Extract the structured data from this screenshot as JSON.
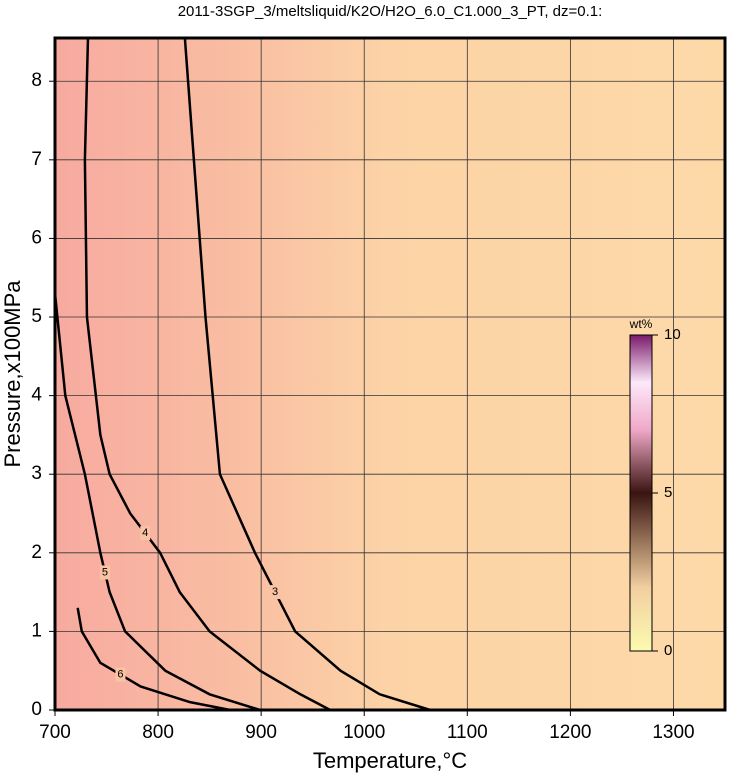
{
  "chart_data": {
    "type": "contour",
    "title": "2011-3SGP_3/meltsliquid/K2O/H2O_6.0_C1.000_3_PT, dz=0.1:",
    "x_label": "Temperature,°C",
    "y_label": "Pressure,x100MPa",
    "xlim": [
      700,
      1350
    ],
    "ylim": [
      0,
      8.55
    ],
    "xticks": [
      700,
      800,
      900,
      1000,
      1100,
      1200,
      1300
    ],
    "yticks": [
      0,
      1,
      2,
      3,
      4,
      5,
      6,
      7,
      8
    ],
    "grid": true,
    "line_color": "#000000",
    "contours": [
      {
        "level": 3,
        "x": [
          826,
          846,
          860,
          894,
          933,
          977,
          1015,
          1064
        ],
        "y": [
          8.55,
          5,
          3,
          2,
          1,
          0.5,
          0.2,
          0
        ]
      },
      {
        "level": 4,
        "x": [
          732,
          729,
          731,
          744,
          753,
          773,
          802,
          821,
          850,
          899,
          938,
          967
        ],
        "y": [
          8.55,
          7,
          5,
          3.5,
          3,
          2.5,
          2,
          1.5,
          1,
          0.5,
          0.2,
          0
        ]
      },
      {
        "level": 5,
        "x": [
          700,
          710,
          729,
          744,
          753,
          768,
          807,
          850,
          899
        ],
        "y": [
          5.3,
          4,
          3,
          2,
          1.5,
          1,
          0.5,
          0.2,
          0
        ]
      },
      {
        "level": 6,
        "x": [
          722,
          726,
          744,
          783,
          831,
          870
        ],
        "y": [
          1.3,
          1,
          0.6,
          0.3,
          0.1,
          0
        ]
      }
    ],
    "colorbar": {
      "label": "wt%",
      "lim": [
        0,
        10
      ],
      "ticks": [
        0,
        5,
        10
      ]
    }
  }
}
